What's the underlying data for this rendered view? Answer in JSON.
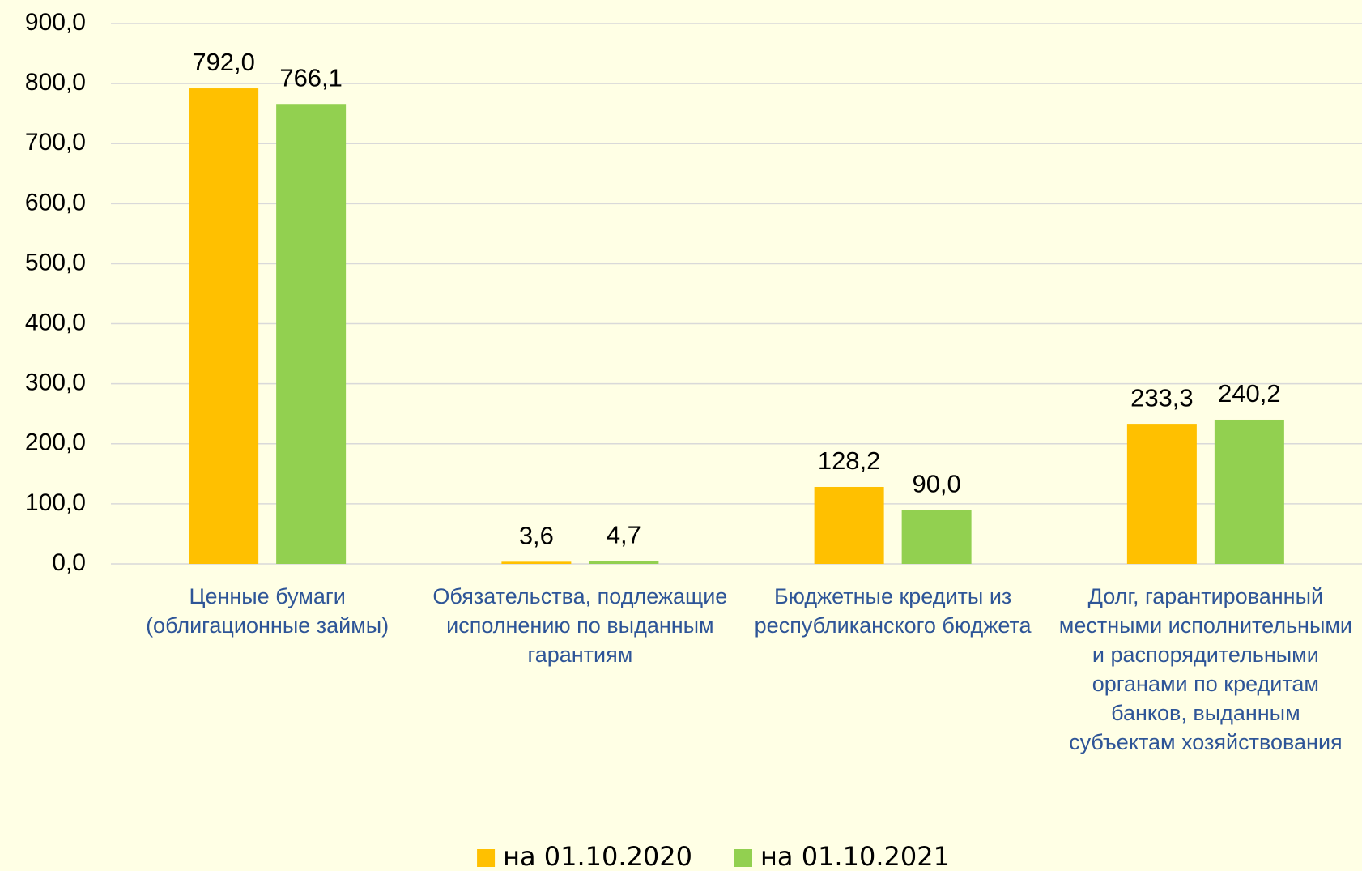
{
  "chart_data": {
    "type": "bar",
    "categories": [
      "Ценные бумаги (облигационные займы)",
      "Обязательства, подлежащие исполнению по выданным гарантиям",
      "Бюджетные кредиты из республиканского бюджета",
      "Долг, гарантированный местными исполнительными и распорядительными органами по кредитам банков, выданным субъектам хозяйствования"
    ],
    "series": [
      {
        "name": "на 01.10.2020",
        "color": "#ffc000",
        "values": [
          792.0,
          3.6,
          128.2,
          233.3
        ],
        "value_labels": [
          "792,0",
          "3,6",
          "128,2",
          "233,3"
        ]
      },
      {
        "name": "на 01.10.2021",
        "color": "#92d050",
        "values": [
          766.1,
          4.7,
          90.0,
          240.2
        ],
        "value_labels": [
          "766,1",
          "4,7",
          "90,0",
          "240,2"
        ]
      }
    ],
    "ylim": [
      0,
      900
    ],
    "yticks": [
      {
        "value": 0,
        "label": "0,0"
      },
      {
        "value": 100,
        "label": "100,0"
      },
      {
        "value": 200,
        "label": "200,0"
      },
      {
        "value": 300,
        "label": "300,0"
      },
      {
        "value": 400,
        "label": "400,0"
      },
      {
        "value": 500,
        "label": "500,0"
      },
      {
        "value": 600,
        "label": "600,0"
      },
      {
        "value": 700,
        "label": "700,0"
      },
      {
        "value": 800,
        "label": "800,0"
      },
      {
        "value": 900,
        "label": "900,0"
      }
    ],
    "grid": true,
    "legend": "bottom"
  }
}
